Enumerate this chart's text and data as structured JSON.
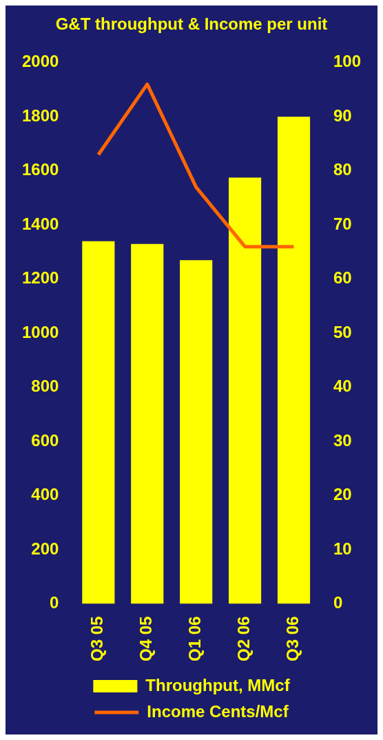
{
  "chart_data": {
    "type": "bar",
    "title": "G&T throughput & Income per unit",
    "categories": [
      "Q3 05",
      "Q4 05",
      "Q1 06",
      "Q2 06",
      "Q3 06"
    ],
    "series": [
      {
        "name": "Throughput, MMcf",
        "color": "#ffff00",
        "values": [
          1340,
          1330,
          1270,
          1575,
          1800
        ]
      },
      {
        "name": "Income Cents/Mcf",
        "type": "line",
        "axis": "y2",
        "color": "#ff6600",
        "values": [
          83,
          96,
          77,
          66,
          66
        ]
      }
    ],
    "ylim": [
      0,
      2000
    ],
    "yticks": [
      0,
      200,
      400,
      600,
      800,
      1000,
      1200,
      1400,
      1600,
      1800,
      2000
    ],
    "y2lim": [
      0,
      100
    ],
    "y2ticks": [
      0,
      10,
      20,
      30,
      40,
      50,
      60,
      70,
      80,
      90,
      100
    ],
    "grid": false,
    "legend": "bottom",
    "marker": "none"
  }
}
